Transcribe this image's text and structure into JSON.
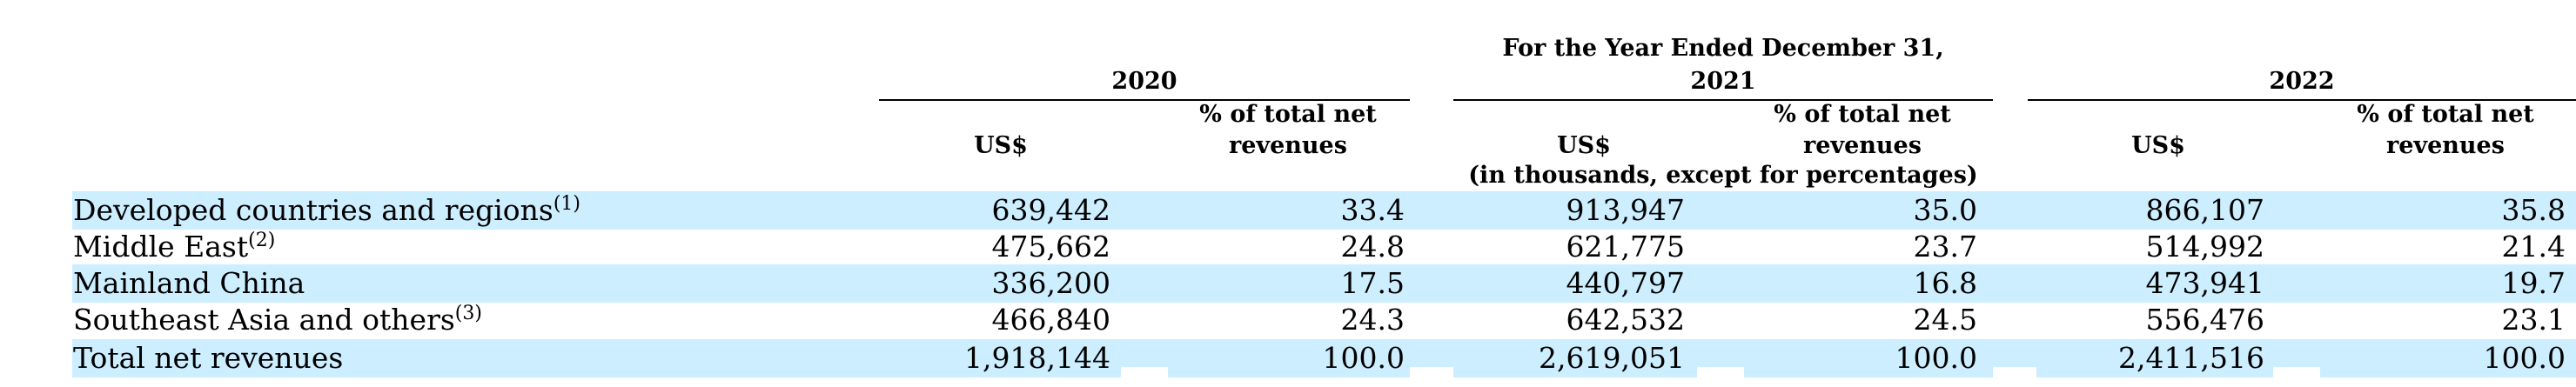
{
  "header": {
    "period_title_line1": "For the Year Ended December 31,",
    "years": [
      "2020",
      "2021",
      "2022"
    ],
    "col_usd": "US$",
    "col_pct": "% of total net revenues",
    "col_pct_line1": "% of total net",
    "col_pct_line2": "revenues",
    "units_note": "(in thousands, except for percentages)"
  },
  "rows": [
    {
      "label": "Developed countries and regions",
      "footnote": "(1)",
      "values": [
        "639,442",
        "33.4",
        "913,947",
        "35.0",
        "866,107",
        "35.8"
      ],
      "shaded": true
    },
    {
      "label": "Middle East",
      "footnote": "(2)",
      "values": [
        "475,662",
        "24.8",
        "621,775",
        "23.7",
        "514,992",
        "21.4"
      ],
      "shaded": false
    },
    {
      "label": "Mainland China",
      "footnote": "",
      "values": [
        "336,200",
        "17.5",
        "440,797",
        "16.8",
        "473,941",
        "19.7"
      ],
      "shaded": true
    },
    {
      "label": "Southeast Asia and others",
      "footnote": "(3)",
      "values": [
        "466,840",
        "24.3",
        "642,532",
        "24.5",
        "556,476",
        "23.1"
      ],
      "shaded": false
    },
    {
      "label": "Total net revenues",
      "footnote": "",
      "values": [
        "1,918,144",
        "100.0",
        "2,619,051",
        "100.0",
        "2,411,516",
        "100.0"
      ],
      "shaded": true
    }
  ],
  "colors": {
    "row_shade": "#cceeff",
    "text": "#000000",
    "rule": "#000000"
  }
}
